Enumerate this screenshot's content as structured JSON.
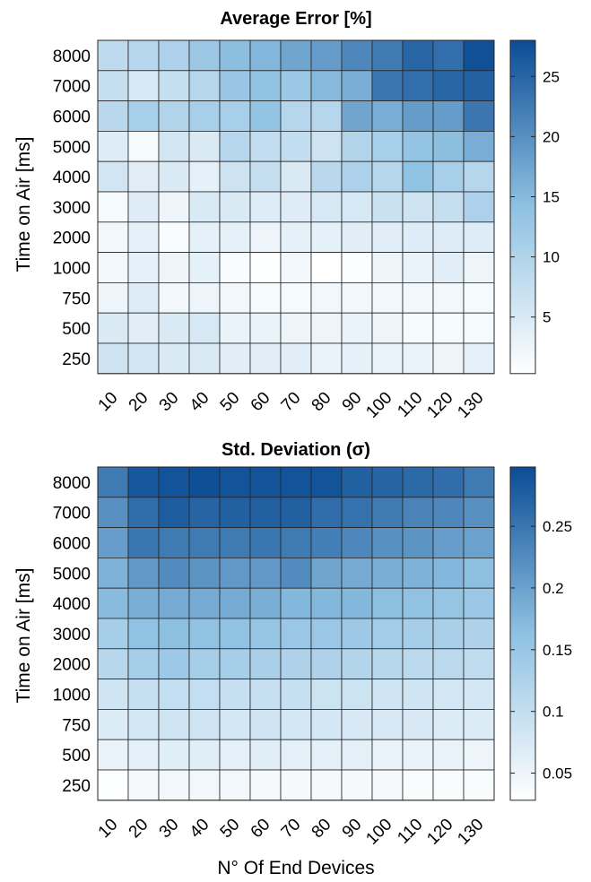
{
  "chart_data": [
    {
      "type": "heatmap",
      "title": "Average Error [%]",
      "ylabel": "Time on Air [ms]",
      "xlabel": "",
      "x_categories": [
        "10",
        "20",
        "30",
        "40",
        "50",
        "60",
        "70",
        "80",
        "90",
        "100",
        "110",
        "120",
        "130"
      ],
      "y_categories": [
        "8000",
        "7000",
        "6000",
        "5000",
        "4000",
        "3000",
        "2000",
        "1000",
        "750",
        "500",
        "250"
      ],
      "colorbar": {
        "min": 0.3,
        "max": 28,
        "ticks": [
          "5",
          "10",
          "15",
          "20",
          "25"
        ],
        "tick_values": [
          5,
          10,
          15,
          20,
          25
        ]
      },
      "colormap": {
        "low": "#ffffff",
        "mid": "#8fc1e2",
        "high": "#0b4c94"
      },
      "values": [
        [
          8.5,
          9.5,
          10.5,
          12.5,
          14.5,
          15.5,
          17.5,
          18.5,
          21,
          22.5,
          25,
          24,
          27.5
        ],
        [
          7.5,
          5.5,
          7.5,
          9.5,
          13,
          14,
          12.5,
          15,
          16.5,
          23,
          24,
          25,
          25.5
        ],
        [
          9,
          11,
          10,
          11,
          11,
          13.5,
          9.5,
          9.5,
          17.5,
          16.5,
          18.5,
          18.5,
          23
        ],
        [
          4.5,
          1.5,
          6,
          5,
          9.5,
          8,
          8,
          6.5,
          10,
          11,
          13.5,
          14.5,
          16.5
        ],
        [
          6,
          4,
          5,
          3.5,
          6.5,
          7.5,
          5,
          9,
          10.5,
          9.5,
          14,
          11,
          9.5
        ],
        [
          1.5,
          4.5,
          2.5,
          5,
          5,
          4.5,
          4.5,
          5.5,
          5.5,
          7,
          6.5,
          7.5,
          10.5
        ],
        [
          2,
          3.5,
          1,
          3.5,
          3.5,
          2.5,
          3.5,
          3.5,
          4,
          4,
          4.5,
          4.5,
          4.5
        ],
        [
          2,
          3.5,
          2.5,
          3.5,
          1,
          0.4,
          2,
          0.3,
          0.8,
          2.5,
          3,
          4,
          2.5
        ],
        [
          2.5,
          4.5,
          2,
          2.5,
          2,
          1.5,
          1.5,
          2,
          2,
          2,
          2,
          2,
          1.5
        ],
        [
          5,
          4,
          5,
          5.5,
          3,
          3,
          2.5,
          2.5,
          3,
          2.5,
          1.5,
          1.5,
          1.5
        ],
        [
          6.5,
          6,
          5,
          5,
          4,
          4,
          4,
          3,
          3.5,
          3,
          3,
          2.5,
          3.5
        ]
      ]
    },
    {
      "type": "heatmap",
      "title": "Std. Deviation (σ)",
      "ylabel": "Time on Air [ms]",
      "xlabel": "N° Of End Devices",
      "x_categories": [
        "10",
        "20",
        "30",
        "40",
        "50",
        "60",
        "70",
        "80",
        "90",
        "100",
        "110",
        "120",
        "130"
      ],
      "y_categories": [
        "8000",
        "7000",
        "6000",
        "5000",
        "4000",
        "3000",
        "2000",
        "1000",
        "750",
        "500",
        "250"
      ],
      "colorbar": {
        "min": 0.028,
        "max": 0.298,
        "ticks": [
          "0.05",
          "0.1",
          "0.15",
          "0.2",
          "0.25"
        ],
        "tick_values": [
          0.05,
          0.1,
          0.15,
          0.2,
          0.25
        ]
      },
      "colormap": {
        "low": "#ffffff",
        "mid": "#8fc1e2",
        "high": "#0b4c94"
      },
      "values": [
        [
          0.245,
          0.285,
          0.29,
          0.295,
          0.29,
          0.29,
          0.29,
          0.29,
          0.275,
          0.27,
          0.265,
          0.26,
          0.245
        ],
        [
          0.22,
          0.26,
          0.28,
          0.27,
          0.275,
          0.275,
          0.275,
          0.26,
          0.255,
          0.245,
          0.235,
          0.23,
          0.22
        ],
        [
          0.205,
          0.25,
          0.245,
          0.245,
          0.245,
          0.25,
          0.245,
          0.24,
          0.23,
          0.22,
          0.215,
          0.205,
          0.2
        ],
        [
          0.18,
          0.21,
          0.225,
          0.215,
          0.21,
          0.21,
          0.225,
          0.195,
          0.19,
          0.185,
          0.18,
          0.175,
          0.165
        ],
        [
          0.17,
          0.185,
          0.19,
          0.19,
          0.19,
          0.185,
          0.175,
          0.175,
          0.175,
          0.165,
          0.16,
          0.155,
          0.15
        ],
        [
          0.135,
          0.16,
          0.165,
          0.16,
          0.16,
          0.155,
          0.15,
          0.15,
          0.145,
          0.14,
          0.135,
          0.13,
          0.125
        ],
        [
          0.115,
          0.135,
          0.145,
          0.135,
          0.135,
          0.13,
          0.125,
          0.125,
          0.12,
          0.115,
          0.11,
          0.11,
          0.105
        ],
        [
          0.085,
          0.095,
          0.1,
          0.1,
          0.095,
          0.095,
          0.095,
          0.09,
          0.09,
          0.085,
          0.085,
          0.08,
          0.08
        ],
        [
          0.07,
          0.08,
          0.085,
          0.085,
          0.08,
          0.085,
          0.08,
          0.08,
          0.075,
          0.075,
          0.075,
          0.07,
          0.07
        ],
        [
          0.055,
          0.06,
          0.065,
          0.065,
          0.06,
          0.065,
          0.06,
          0.06,
          0.06,
          0.055,
          0.055,
          0.055,
          0.05
        ],
        [
          0.03,
          0.04,
          0.045,
          0.045,
          0.045,
          0.04,
          0.04,
          0.04,
          0.04,
          0.04,
          0.035,
          0.035,
          0.035
        ]
      ]
    }
  ]
}
